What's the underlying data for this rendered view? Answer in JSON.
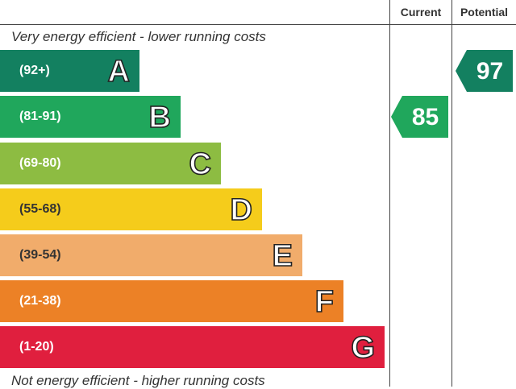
{
  "chart_data": {
    "type": "bar",
    "headers": {
      "current": "Current",
      "potential": "Potential"
    },
    "top_caption": "Very energy efficient - lower running costs",
    "bottom_caption": "Not energy efficient - higher running costs",
    "bands": [
      {
        "range": "(92+)",
        "letter": "A",
        "color": "#138060"
      },
      {
        "range": "(81-91)",
        "letter": "B",
        "color": "#20a75c"
      },
      {
        "range": "(69-80)",
        "letter": "C",
        "color": "#8dbc42"
      },
      {
        "range": "(55-68)",
        "letter": "D",
        "color": "#f5cc1b"
      },
      {
        "range": "(39-54)",
        "letter": "E",
        "color": "#f1ac6b"
      },
      {
        "range": "(21-38)",
        "letter": "F",
        "color": "#ec8126"
      },
      {
        "range": "(1-20)",
        "letter": "G",
        "color": "#e01f3e"
      }
    ],
    "current": {
      "value": 85,
      "band": "B",
      "color": "#20a75c"
    },
    "potential": {
      "value": 97,
      "band": "A",
      "color": "#138060"
    }
  }
}
